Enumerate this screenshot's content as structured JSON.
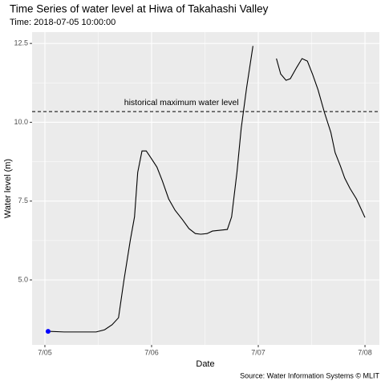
{
  "chart_data": {
    "type": "line",
    "title": "Time Series of water level at Hiwa of Takahashi Valley",
    "subtitle": "Time: 2018-07-05 10:00:00",
    "x_label": "Date",
    "y_label": "Water level (m)",
    "caption": "Source: Water Information Systems © MLIT",
    "x": [
      0.03,
      0.18,
      0.48,
      0.56,
      0.63,
      0.69,
      0.74,
      0.8,
      0.84,
      0.87,
      0.91,
      0.95,
      0.99,
      1.05,
      1.1,
      1.16,
      1.22,
      1.29,
      1.35,
      1.41,
      1.46,
      1.52,
      1.57,
      1.65,
      1.71,
      1.75,
      1.8,
      1.84,
      1.89,
      1.95,
      2.06,
      2.17,
      2.21,
      2.26,
      2.3,
      2.36,
      2.41,
      2.46,
      2.51,
      2.56,
      2.62,
      2.68,
      2.72,
      2.77,
      2.81,
      2.86,
      2.92,
      3.0
    ],
    "series": [
      {
        "name": "Water level",
        "color": "#000000",
        "values": [
          3.37,
          3.35,
          3.35,
          3.42,
          3.58,
          3.8,
          4.97,
          6.25,
          7.0,
          8.41,
          9.09,
          9.09,
          8.89,
          8.58,
          8.15,
          7.57,
          7.21,
          6.91,
          6.63,
          6.47,
          6.45,
          6.47,
          6.55,
          6.58,
          6.6,
          7.0,
          8.41,
          9.81,
          11.08,
          12.42,
          null,
          12.02,
          11.53,
          11.33,
          11.38,
          11.74,
          12.02,
          11.94,
          11.51,
          11.03,
          10.31,
          9.68,
          9.04,
          8.61,
          8.23,
          7.9,
          7.57,
          6.98
        ]
      }
    ],
    "highlight": {
      "x": 0.03,
      "value": 3.37,
      "color": "#0000ff"
    },
    "reference_line": {
      "value": 10.34,
      "label": "historical maximum water level",
      "label_x": 1.28
    },
    "xlim": [
      -0.12,
      3.135
    ],
    "xticks": [
      {
        "value": 0,
        "label": "7/05"
      },
      {
        "value": 1,
        "label": "7/06"
      },
      {
        "value": 2,
        "label": "7/07"
      },
      {
        "value": 3,
        "label": "7/08"
      }
    ],
    "ylim": [
      2.94,
      12.86
    ],
    "yticks": [
      {
        "value": 5,
        "label": "5.0"
      },
      7.5,
      {
        "value": 10,
        "label": "10.0"
      },
      12.5
    ],
    "grid": true
  }
}
